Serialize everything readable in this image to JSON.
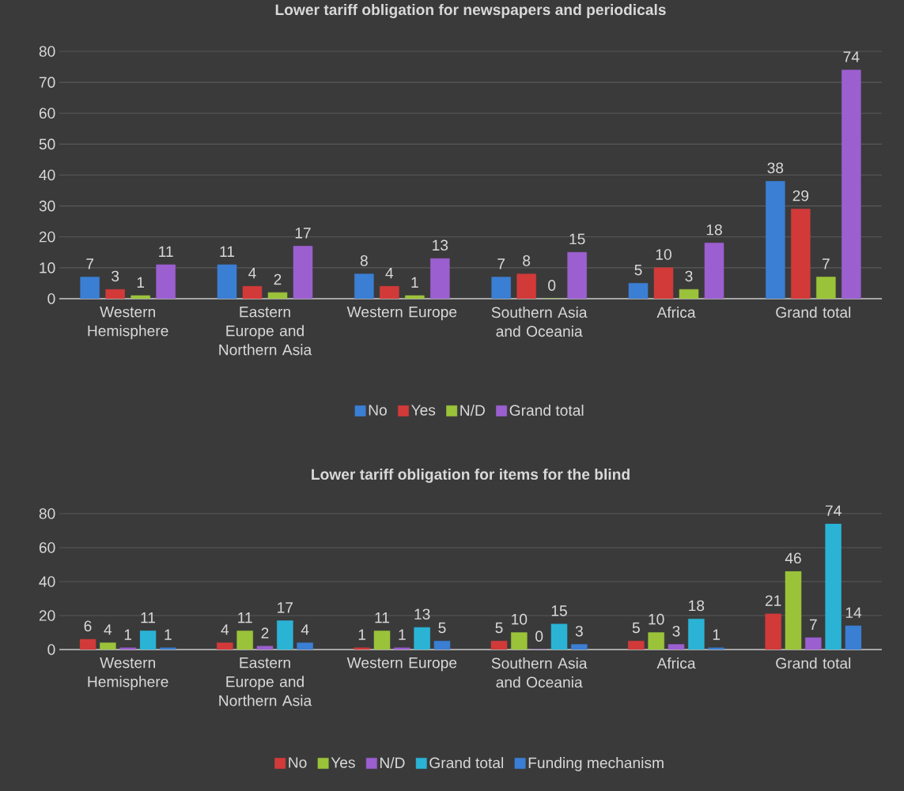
{
  "chart_data": [
    {
      "type": "bar",
      "title": "Lower tariff obligation for newspapers and periodicals",
      "categories": [
        "Western Hemisphere",
        "Eastern Europe and Northern Asia",
        "Western Europe",
        "Southern Asia and Oceania",
        "Africa",
        "Grand total"
      ],
      "series": [
        {
          "name": "No",
          "color": "#3b7fd4",
          "values": [
            7,
            11,
            8,
            7,
            5,
            38
          ]
        },
        {
          "name": "Yes",
          "color": "#d23a3a",
          "values": [
            3,
            4,
            4,
            8,
            10,
            29
          ]
        },
        {
          "name": "N/D",
          "color": "#9bc33a",
          "values": [
            1,
            2,
            1,
            0,
            3,
            7
          ]
        },
        {
          "name": "Grand total",
          "color": "#9c5fd0",
          "values": [
            11,
            17,
            13,
            15,
            18,
            74
          ]
        }
      ],
      "ylim": [
        0,
        80
      ],
      "yticks": [
        0,
        10,
        20,
        30,
        40,
        50,
        60,
        70,
        80
      ],
      "grid": "y",
      "legend": "bottom",
      "data_labels": true
    },
    {
      "type": "bar",
      "title": "Lower tariff obligation for items for the blind",
      "categories": [
        "Western Hemisphere",
        "Eastern Europe and Northern Asia",
        "Western Europe",
        "Southern Asia and Oceania",
        "Africa",
        "Grand total"
      ],
      "series": [
        {
          "name": "No",
          "color": "#d23a3a",
          "values": [
            6,
            4,
            1,
            5,
            5,
            21
          ]
        },
        {
          "name": "Yes",
          "color": "#9bc33a",
          "values": [
            4,
            11,
            11,
            10,
            10,
            46
          ]
        },
        {
          "name": "N/D",
          "color": "#9c5fd0",
          "values": [
            1,
            2,
            1,
            0,
            3,
            7
          ]
        },
        {
          "name": "Grand total",
          "color": "#2bb3d6",
          "values": [
            11,
            17,
            13,
            15,
            18,
            74
          ]
        },
        {
          "name": "Funding mechanism",
          "color": "#3b7fd4",
          "values": [
            1,
            4,
            5,
            3,
            1,
            14
          ]
        }
      ],
      "ylim": [
        0,
        80
      ],
      "yticks": [
        0,
        20,
        40,
        60,
        80
      ],
      "grid": "y",
      "legend": "bottom",
      "data_labels": true
    }
  ]
}
